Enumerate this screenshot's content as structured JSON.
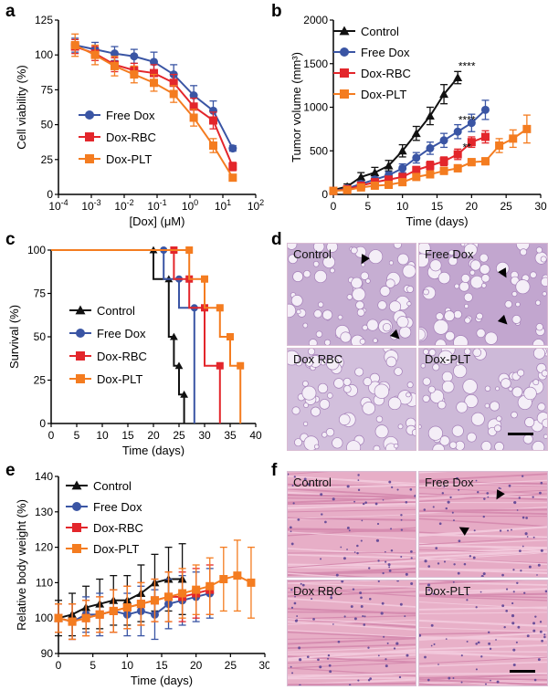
{
  "panels": {
    "a": "a",
    "b": "b",
    "c": "c",
    "d": "d",
    "e": "e",
    "f": "f"
  },
  "colors": {
    "control": "#111111",
    "free_dox": "#3a55a4",
    "dox_rbc": "#e3262b",
    "dox_plt": "#f47c20"
  },
  "chart_data": [
    {
      "id": "a",
      "type": "line",
      "xscale": "log",
      "xlabel": "[Dox] (μM)",
      "ylabel": "Cell viability (%)",
      "xlim": [
        0.0001,
        100
      ],
      "ylim": [
        0,
        125
      ],
      "xticks": [
        0.0001,
        0.001,
        0.01,
        0.1,
        1,
        10,
        100
      ],
      "xtick_labels": [
        [
          "10",
          "-4"
        ],
        [
          "10",
          "-3"
        ],
        [
          "10",
          "-2"
        ],
        [
          "10",
          "-1"
        ],
        [
          "10",
          "0"
        ],
        [
          "10",
          "1"
        ],
        [
          "10",
          "2"
        ]
      ],
      "yticks": [
        0,
        25,
        50,
        75,
        100,
        125
      ],
      "x": [
        0.00032,
        0.0013,
        0.0051,
        0.02,
        0.08,
        0.32,
        1.3,
        5.1,
        20
      ],
      "legend": [
        "Free Dox",
        "Dox-RBC",
        "Dox-PLT"
      ],
      "series": [
        {
          "name": "Free Dox",
          "values": [
            107,
            104,
            101,
            99,
            95,
            86,
            71,
            60,
            33
          ],
          "err": [
            5,
            5,
            5,
            5,
            7,
            7,
            7,
            7,
            2
          ]
        },
        {
          "name": "Dox-RBC",
          "values": [
            106,
            101,
            93,
            89,
            87,
            80,
            63,
            53,
            20
          ],
          "err": [
            5,
            5,
            5,
            5,
            6,
            6,
            6,
            6,
            3
          ]
        },
        {
          "name": "Dox-PLT",
          "values": [
            107,
            100,
            92,
            86,
            80,
            72,
            55,
            35,
            12
          ],
          "err": [
            8,
            7,
            7,
            6,
            6,
            6,
            6,
            5,
            2
          ]
        }
      ]
    },
    {
      "id": "b",
      "type": "line",
      "xlabel": "Time (days)",
      "ylabel": "Tumor volume (mm³)",
      "xlim": [
        0,
        30
      ],
      "ylim": [
        0,
        2000
      ],
      "xticks": [
        0,
        5,
        10,
        15,
        20,
        25,
        30
      ],
      "yticks": [
        0,
        500,
        1000,
        1500,
        2000
      ],
      "legend": [
        "Control",
        "Free Dox",
        "Dox-RBC",
        "Dox-PLT"
      ],
      "annotations": [
        {
          "text": "****",
          "x": 18,
          "y": 1430
        },
        {
          "text": "****",
          "x": 18,
          "y": 810
        },
        {
          "text": "**",
          "x": 18,
          "y": 500
        }
      ],
      "series": [
        {
          "name": "Control",
          "x": [
            0,
            2,
            4,
            6,
            8,
            10,
            12,
            14,
            16,
            18
          ],
          "values": [
            50,
            90,
            200,
            250,
            330,
            500,
            700,
            900,
            1150,
            1340
          ],
          "err": [
            20,
            30,
            50,
            60,
            60,
            70,
            80,
            100,
            110,
            70
          ]
        },
        {
          "name": "Free Dox",
          "x": [
            0,
            2,
            4,
            6,
            8,
            10,
            12,
            14,
            16,
            18,
            20,
            22
          ],
          "values": [
            40,
            70,
            120,
            170,
            220,
            300,
            420,
            530,
            620,
            720,
            820,
            970
          ],
          "err": [
            15,
            20,
            30,
            30,
            40,
            50,
            60,
            70,
            80,
            80,
            100,
            110
          ]
        },
        {
          "name": "Dox-RBC",
          "x": [
            0,
            2,
            4,
            6,
            8,
            10,
            12,
            14,
            16,
            18,
            20,
            22
          ],
          "values": [
            40,
            60,
            100,
            140,
            170,
            200,
            280,
            330,
            380,
            460,
            600,
            660
          ],
          "err": [
            10,
            15,
            20,
            20,
            30,
            30,
            40,
            50,
            50,
            60,
            60,
            70
          ]
        },
        {
          "name": "Dox-PLT",
          "x": [
            0,
            2,
            4,
            6,
            8,
            10,
            12,
            14,
            16,
            18,
            20,
            22,
            24,
            26,
            28
          ],
          "values": [
            40,
            50,
            80,
            100,
            110,
            140,
            200,
            230,
            270,
            300,
            370,
            380,
            560,
            640,
            750
          ],
          "err": [
            10,
            10,
            15,
            20,
            20,
            20,
            30,
            30,
            40,
            40,
            40,
            40,
            80,
            100,
            160
          ]
        }
      ]
    },
    {
      "id": "c",
      "type": "line",
      "xlabel": "Time (days)",
      "ylabel": "Survival (%)",
      "xlim": [
        0,
        40
      ],
      "ylim": [
        0,
        100
      ],
      "xticks": [
        0,
        5,
        10,
        15,
        20,
        25,
        30,
        35,
        40
      ],
      "yticks": [
        0,
        25,
        50,
        75,
        100
      ],
      "legend": [
        "Control",
        "Free Dox",
        "Dox-RBC",
        "Dox-PLT"
      ],
      "series": [
        {
          "name": "Control",
          "x": [
            0,
            20,
            20,
            23,
            23,
            24,
            24,
            25,
            25,
            26,
            26
          ],
          "values": [
            100,
            100,
            83.3,
            83.3,
            50,
            50,
            33.3,
            33.3,
            16.7,
            16.7,
            0
          ]
        },
        {
          "name": "Free Dox",
          "x": [
            0,
            22,
            22,
            25,
            25,
            28,
            28
          ],
          "values": [
            100,
            100,
            83.3,
            83.3,
            66.7,
            66.7,
            0
          ]
        },
        {
          "name": "Dox-RBC",
          "x": [
            0,
            24,
            24,
            27,
            27,
            30,
            30,
            33,
            33
          ],
          "values": [
            100,
            100,
            83.3,
            83.3,
            66.7,
            66.7,
            33.3,
            33.3,
            0
          ]
        },
        {
          "name": "Dox-PLT",
          "x": [
            0,
            27,
            27,
            30,
            30,
            33,
            33,
            35,
            35,
            37,
            37
          ],
          "values": [
            100,
            100,
            83.3,
            83.3,
            66.7,
            66.7,
            50,
            50,
            33.3,
            33.3,
            0
          ]
        }
      ]
    },
    {
      "id": "e",
      "type": "line",
      "xlabel": "Time (days)",
      "ylabel": "Relative body weight (%)",
      "xlim": [
        0,
        30
      ],
      "ylim": [
        90,
        140
      ],
      "xticks": [
        0,
        5,
        10,
        15,
        20,
        25,
        30
      ],
      "yticks": [
        90,
        100,
        110,
        120,
        130,
        140
      ],
      "legend": [
        "Control",
        "Free Dox",
        "Dox-RBC",
        "Dox-PLT"
      ],
      "series": [
        {
          "name": "Control",
          "x": [
            0,
            2,
            4,
            6,
            8,
            10,
            12,
            14,
            16,
            18
          ],
          "values": [
            100,
            101,
            103,
            104,
            105,
            105,
            107,
            110,
            111,
            111
          ],
          "err": [
            5,
            6,
            6,
            7,
            7,
            7,
            8,
            8,
            9,
            10
          ]
        },
        {
          "name": "Free Dox",
          "x": [
            0,
            2,
            4,
            6,
            8,
            10,
            12,
            14,
            16,
            18,
            20,
            22
          ],
          "values": [
            100,
            99,
            101,
            101,
            102,
            101,
            102,
            101,
            104,
            105,
            106,
            107
          ],
          "err": [
            4,
            5,
            5,
            6,
            6,
            6,
            7,
            7,
            7,
            7,
            7,
            7
          ]
        },
        {
          "name": "Dox-RBC",
          "x": [
            0,
            2,
            4,
            6,
            8,
            10,
            12,
            14,
            16,
            18,
            20,
            22
          ],
          "values": [
            100,
            99,
            100,
            101,
            102,
            103,
            104,
            105,
            106,
            106,
            107,
            108
          ],
          "err": [
            4,
            5,
            5,
            5,
            6,
            6,
            6,
            6,
            7,
            7,
            7,
            7
          ]
        },
        {
          "name": "Dox-PLT",
          "x": [
            0,
            2,
            4,
            6,
            8,
            10,
            12,
            14,
            16,
            18,
            20,
            22,
            24,
            26,
            28
          ],
          "values": [
            100,
            99,
            100,
            101,
            102,
            103,
            104,
            105,
            106,
            107,
            108,
            109,
            111,
            112,
            110
          ],
          "err": [
            4,
            5,
            5,
            5,
            6,
            6,
            6,
            6,
            7,
            7,
            7,
            8,
            9,
            10,
            10
          ]
        }
      ]
    }
  ],
  "histology_d": {
    "tiles": [
      {
        "label": "Control",
        "bg": "#c6aed2"
      },
      {
        "label": "Free Dox",
        "bg": "#c2a6cf"
      },
      {
        "label": "Dox RBC",
        "bg": "#d2bfdc"
      },
      {
        "label": "Dox-PLT",
        "bg": "#cdb9d8"
      }
    ]
  },
  "histology_f": {
    "tiles": [
      {
        "label": "Control",
        "bg": "#e7aec7"
      },
      {
        "label": "Free Dox",
        "bg": "#e6abc5"
      },
      {
        "label": "Dox RBC",
        "bg": "#e7aec6"
      },
      {
        "label": "Dox-PLT",
        "bg": "#e8b0c8"
      }
    ]
  }
}
